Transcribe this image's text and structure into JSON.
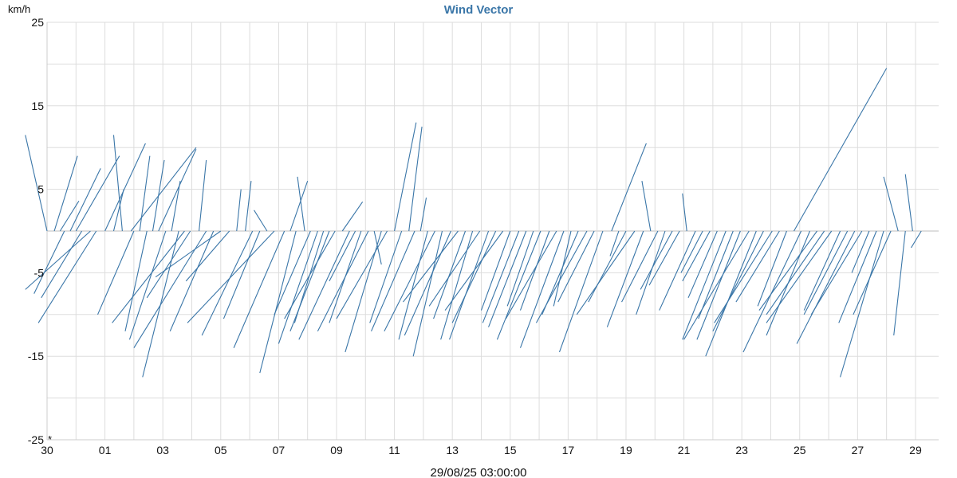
{
  "chart_data": {
    "type": "line",
    "title": "Wind Vector",
    "ylabel": "km/h",
    "ylim": [
      -25,
      25
    ],
    "yticks": [
      "25",
      "15",
      "5",
      "-5",
      "-15",
      "-25"
    ],
    "xlim": [
      0,
      30.8
    ],
    "x_ticks": [
      {
        "day": 0,
        "label": "30"
      },
      {
        "day": 2,
        "label": "01"
      },
      {
        "day": 4,
        "label": "03"
      },
      {
        "day": 6,
        "label": "05"
      },
      {
        "day": 8,
        "label": "07"
      },
      {
        "day": 10,
        "label": "09"
      },
      {
        "day": 12,
        "label": "11"
      },
      {
        "day": 14,
        "label": "13"
      },
      {
        "day": 16,
        "label": "15"
      },
      {
        "day": 18,
        "label": "17"
      },
      {
        "day": 20,
        "label": "19"
      },
      {
        "day": 22,
        "label": "21"
      },
      {
        "day": 24,
        "label": "23"
      },
      {
        "day": 26,
        "label": "25"
      },
      {
        "day": 28,
        "label": "27"
      },
      {
        "day": 30,
        "label": "29"
      }
    ],
    "grid": true,
    "marker_text": "*",
    "cursor_label": "29/08/25 03:00:00",
    "colors": {
      "series": "#3a76a8",
      "title": "#3a76a8"
    },
    "series": [
      {
        "vectors": [
          [
            0.0,
            -1.5,
            11.5
          ],
          [
            0.25,
            1.6,
            9.0
          ],
          [
            0.45,
            1.3,
            3.6
          ],
          [
            0.6,
            -2.1,
            -7.5
          ],
          [
            0.8,
            2.1,
            7.5
          ],
          [
            1.0,
            3.0,
            9.0
          ],
          [
            1.2,
            -2.8,
            -8.0
          ],
          [
            1.5,
            -4.5,
            -7.0
          ],
          [
            1.7,
            -4.0,
            -11.0
          ],
          [
            2.0,
            2.8,
            10.5
          ],
          [
            2.3,
            0.7,
            5.0
          ],
          [
            2.6,
            -0.6,
            11.5
          ],
          [
            2.9,
            4.5,
            10.0
          ],
          [
            3.0,
            -2.5,
            -10.0
          ],
          [
            3.2,
            0.7,
            9.0
          ],
          [
            3.45,
            -1.5,
            -12.0
          ],
          [
            3.65,
            0.8,
            8.5
          ],
          [
            3.85,
            2.6,
            9.8
          ],
          [
            4.1,
            -2.5,
            -13.0
          ],
          [
            4.3,
            0.6,
            6.0
          ],
          [
            4.55,
            -2.5,
            -17.5
          ],
          [
            4.75,
            -5.0,
            -11.0
          ],
          [
            4.95,
            -3.0,
            -8.0
          ],
          [
            5.25,
            0.5,
            8.5
          ],
          [
            5.5,
            -5.0,
            -14.0
          ],
          [
            5.75,
            -3.0,
            -12.0
          ],
          [
            6.0,
            -4.5,
            -5.5
          ],
          [
            6.3,
            -3.0,
            -6.0
          ],
          [
            6.55,
            0.3,
            5.0
          ],
          [
            6.85,
            0.4,
            6.0
          ],
          [
            7.1,
            -3.5,
            -12.5
          ],
          [
            7.35,
            -2.5,
            -10.5
          ],
          [
            7.6,
            -0.9,
            2.5
          ],
          [
            7.85,
            -6.0,
            -11.0
          ],
          [
            8.2,
            -3.5,
            -14.0
          ],
          [
            8.4,
            1.2,
            6.0
          ],
          [
            8.6,
            -2.5,
            -17.0
          ],
          [
            8.9,
            -0.5,
            6.5
          ],
          [
            9.1,
            -2.5,
            -10.0
          ],
          [
            9.35,
            -2.7,
            -13.5
          ],
          [
            9.55,
            -2.0,
            -11.0
          ],
          [
            9.75,
            -2.7,
            -12.0
          ],
          [
            9.95,
            -3.5,
            -10.5
          ],
          [
            10.2,
            1.4,
            3.5
          ],
          [
            10.45,
            -3.5,
            -13.0
          ],
          [
            10.65,
            -1.8,
            -6.0
          ],
          [
            10.85,
            -2.2,
            -11.0
          ],
          [
            11.1,
            -3.5,
            -12.0
          ],
          [
            11.3,
            0.5,
            -4.0
          ],
          [
            11.55,
            -2.5,
            -14.5
          ],
          [
            11.75,
            -3.5,
            -10.5
          ],
          [
            12.0,
            1.5,
            13.0
          ],
          [
            12.25,
            -2.2,
            -11.0
          ],
          [
            12.5,
            0.9,
            12.5
          ],
          [
            12.7,
            -3.0,
            -12.0
          ],
          [
            12.9,
            0.4,
            4.0
          ],
          [
            13.15,
            -2.0,
            -13.0
          ],
          [
            13.4,
            -3.5,
            -12.0
          ],
          [
            13.65,
            -2.0,
            -15.0
          ],
          [
            13.95,
            -3.2,
            -12.5
          ],
          [
            14.2,
            -3.8,
            -8.5
          ],
          [
            14.45,
            -2.2,
            -10.5
          ],
          [
            14.7,
            -2.2,
            -13.0
          ],
          [
            14.95,
            -3.5,
            -9.0
          ],
          [
            15.25,
            -2.7,
            -13.0
          ],
          [
            15.5,
            -3.0,
            -11.0
          ],
          [
            15.75,
            -4.0,
            -9.5
          ],
          [
            16.0,
            -2.0,
            -9.5
          ],
          [
            16.3,
            -2.5,
            -11.0
          ],
          [
            16.55,
            -2.6,
            -11.5
          ],
          [
            16.8,
            -1.8,
            -9.0
          ],
          [
            17.05,
            -3.0,
            -13.0
          ],
          [
            17.35,
            -2.0,
            -9.5
          ],
          [
            17.6,
            -3.5,
            -10.5
          ],
          [
            17.85,
            -3.0,
            -14.0
          ],
          [
            18.1,
            -1.2,
            -9.0
          ],
          [
            18.35,
            -2.5,
            -10.0
          ],
          [
            18.65,
            -3.5,
            -11.0
          ],
          [
            18.9,
            -2.5,
            -8.5
          ],
          [
            19.2,
            -3.0,
            -14.5
          ],
          [
            19.5,
            2.4,
            10.5
          ],
          [
            19.75,
            -0.6,
            -3.0
          ],
          [
            20.0,
            -2.6,
            -8.5
          ],
          [
            20.3,
            -4.0,
            -10.0
          ],
          [
            20.6,
            -2.5,
            -11.5
          ],
          [
            20.85,
            -0.6,
            6.0
          ],
          [
            21.1,
            -2.5,
            -8.5
          ],
          [
            21.35,
            -2.0,
            -10.0
          ],
          [
            21.6,
            -2.2,
            -7.0
          ],
          [
            21.85,
            -2.1,
            -6.5
          ],
          [
            22.1,
            -0.3,
            4.5
          ],
          [
            22.4,
            -2.5,
            -9.5
          ],
          [
            22.65,
            -1.5,
            -5.0
          ],
          [
            22.9,
            -1.9,
            -6.0
          ],
          [
            23.15,
            -2.0,
            -8.0
          ],
          [
            23.45,
            -3.0,
            -13.0
          ],
          [
            23.7,
            -2.4,
            -10.5
          ],
          [
            23.95,
            -3.0,
            -13.0
          ],
          [
            24.25,
            -4.5,
            -13.0
          ],
          [
            24.5,
            -3.5,
            -15.0
          ],
          [
            24.75,
            -3.5,
            -12.0
          ],
          [
            25.05,
            -4.0,
            -11.0
          ],
          [
            25.3,
            -3.0,
            -8.5
          ],
          [
            25.55,
            -2.0,
            -9.0
          ],
          [
            25.8,
            6.4,
            19.5
          ],
          [
            26.05,
            -4.0,
            -14.5
          ],
          [
            26.35,
            -3.0,
            -12.5
          ],
          [
            26.6,
            -4.0,
            -9.5
          ],
          [
            26.85,
            -4.0,
            -10.0
          ],
          [
            27.1,
            -4.5,
            -11.0
          ],
          [
            27.4,
            -2.5,
            -9.5
          ],
          [
            27.65,
            -3.0,
            -10.0
          ],
          [
            27.9,
            -4.0,
            -13.5
          ],
          [
            28.15,
            -3.5,
            -10.0
          ],
          [
            28.4,
            -1.2,
            -5.0
          ],
          [
            28.65,
            -2.6,
            -11.0
          ],
          [
            28.9,
            -3.0,
            -17.5
          ],
          [
            29.15,
            -2.6,
            -10.0
          ],
          [
            29.4,
            -1.0,
            6.5
          ],
          [
            29.65,
            -0.8,
            -12.5
          ],
          [
            29.9,
            -0.5,
            6.8
          ],
          [
            30.2,
            -0.7,
            -2.0
          ]
        ]
      }
    ]
  }
}
